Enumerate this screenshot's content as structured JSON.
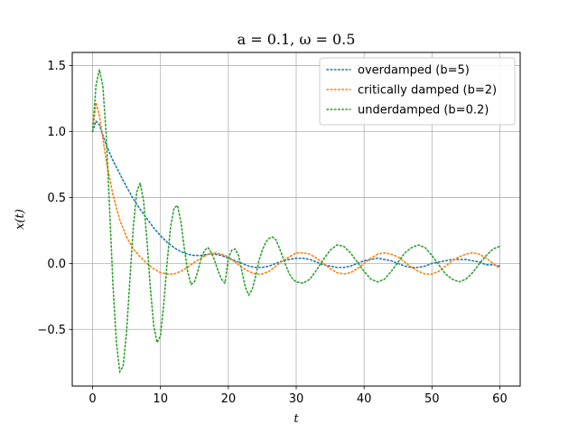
{
  "chart_data": {
    "type": "line",
    "title": "a = 0.1, ω = 0.5",
    "xlabel": "t",
    "ylabel": "x(t)",
    "xlim": [
      -3,
      63
    ],
    "ylim": [
      -0.93,
      1.6
    ],
    "xticks": [
      0,
      10,
      20,
      30,
      40,
      50,
      60
    ],
    "yticks": [
      -0.5,
      0.0,
      0.5,
      1.0,
      1.5
    ],
    "xtick_labels": [
      "0",
      "10",
      "20",
      "30",
      "40",
      "50",
      "60"
    ],
    "ytick_labels": [
      "−0.5",
      "0.0",
      "0.5",
      "1.0",
      "1.5"
    ],
    "grid": true,
    "legend_position": "top-right",
    "line_style": "dotted",
    "series": [
      {
        "name": "overdamped (b=5)",
        "color": "#1f77b4",
        "x": [
          0,
          0.5,
          1,
          2,
          3,
          4,
          5,
          6,
          7,
          8,
          9,
          10,
          11,
          12,
          13,
          14,
          15,
          16,
          17,
          18,
          19,
          20,
          21,
          22,
          23,
          24,
          25,
          26,
          27,
          28,
          29,
          30,
          31,
          32,
          33,
          34,
          35,
          36,
          37,
          38,
          39,
          40,
          41,
          42,
          43,
          44,
          45,
          46,
          47,
          48,
          49,
          50,
          51,
          52,
          53,
          54,
          55,
          56,
          57,
          58,
          59,
          60
        ],
        "y": [
          1.0,
          1.08,
          1.05,
          0.9,
          0.78,
          0.68,
          0.58,
          0.49,
          0.41,
          0.34,
          0.27,
          0.21,
          0.16,
          0.12,
          0.09,
          0.07,
          0.06,
          0.06,
          0.07,
          0.07,
          0.06,
          0.04,
          0.02,
          0.0,
          -0.02,
          -0.03,
          -0.03,
          -0.02,
          0.0,
          0.02,
          0.03,
          0.04,
          0.04,
          0.03,
          0.01,
          -0.01,
          -0.02,
          -0.03,
          -0.03,
          -0.02,
          0.0,
          0.02,
          0.03,
          0.04,
          0.03,
          0.02,
          0.0,
          -0.02,
          -0.03,
          -0.03,
          -0.02,
          0.0,
          0.01,
          0.02,
          0.03,
          0.03,
          0.03,
          0.02,
          0.01,
          -0.01,
          -0.01,
          -0.02
        ]
      },
      {
        "name": "critically damped (b=2)",
        "color": "#ff7f0e",
        "x": [
          0,
          0.5,
          1,
          2,
          3,
          4,
          5,
          6,
          7,
          8,
          9,
          10,
          11,
          12,
          13,
          14,
          15,
          16,
          17,
          18,
          19,
          20,
          21,
          22,
          23,
          24,
          25,
          26,
          27,
          28,
          29,
          30,
          31,
          32,
          33,
          34,
          35,
          36,
          37,
          38,
          39,
          40,
          41,
          42,
          43,
          44,
          45,
          46,
          47,
          48,
          49,
          50,
          51,
          52,
          53,
          54,
          55,
          56,
          57,
          58,
          59,
          60
        ],
        "y": [
          1.0,
          1.22,
          1.12,
          0.78,
          0.52,
          0.33,
          0.2,
          0.11,
          0.05,
          0.0,
          -0.04,
          -0.07,
          -0.08,
          -0.08,
          -0.06,
          -0.03,
          0.01,
          0.04,
          0.07,
          0.08,
          0.07,
          0.05,
          0.01,
          -0.03,
          -0.06,
          -0.08,
          -0.08,
          -0.06,
          -0.02,
          0.02,
          0.05,
          0.08,
          0.08,
          0.07,
          0.04,
          0.0,
          -0.04,
          -0.07,
          -0.08,
          -0.07,
          -0.04,
          0.0,
          0.04,
          0.07,
          0.08,
          0.07,
          0.05,
          0.01,
          -0.03,
          -0.06,
          -0.08,
          -0.08,
          -0.06,
          -0.02,
          0.02,
          0.05,
          0.07,
          0.08,
          0.07,
          0.04,
          0.0,
          -0.04
        ]
      },
      {
        "name": "underdamped (b=0.2)",
        "color": "#2ca02c",
        "x": [
          0,
          0.5,
          1,
          1.5,
          2,
          2.5,
          3,
          3.5,
          4,
          4.5,
          5,
          5.5,
          6,
          6.5,
          7,
          7.5,
          8,
          8.5,
          9,
          9.5,
          10,
          10.5,
          11,
          11.5,
          12,
          12.5,
          13,
          13.5,
          14,
          14.5,
          15,
          15.5,
          16,
          16.5,
          17,
          17.5,
          18,
          18.5,
          19,
          19.5,
          20,
          20.5,
          21,
          21.5,
          22,
          22.5,
          23,
          23.5,
          24,
          24.5,
          25,
          25.5,
          26,
          26.5,
          27,
          27.5,
          28,
          28.5,
          29,
          29.5,
          30,
          31,
          32,
          33,
          34,
          35,
          36,
          37,
          38,
          39,
          40,
          41,
          42,
          43,
          44,
          45,
          46,
          47,
          48,
          49,
          50,
          51,
          52,
          53,
          54,
          55,
          56,
          57,
          58,
          59,
          60
        ],
        "y": [
          1.0,
          1.35,
          1.47,
          1.35,
          0.98,
          0.42,
          -0.16,
          -0.6,
          -0.82,
          -0.78,
          -0.52,
          -0.12,
          0.28,
          0.54,
          0.61,
          0.48,
          0.18,
          -0.18,
          -0.47,
          -0.6,
          -0.55,
          -0.3,
          0.02,
          0.28,
          0.42,
          0.44,
          0.32,
          0.12,
          -0.06,
          -0.16,
          -0.14,
          -0.06,
          0.04,
          0.1,
          0.12,
          0.08,
          0.02,
          -0.06,
          -0.12,
          -0.15,
          0.04,
          0.1,
          0.11,
          0.06,
          -0.06,
          -0.18,
          -0.24,
          -0.2,
          -0.1,
          0.02,
          0.1,
          0.16,
          0.19,
          0.2,
          0.18,
          0.12,
          0.05,
          -0.02,
          -0.08,
          -0.12,
          -0.14,
          -0.15,
          -0.12,
          -0.05,
          0.03,
          0.1,
          0.14,
          0.13,
          0.08,
          0.01,
          -0.06,
          -0.12,
          -0.14,
          -0.12,
          -0.06,
          0.01,
          0.08,
          0.12,
          0.14,
          0.12,
          0.06,
          -0.01,
          -0.08,
          -0.12,
          -0.14,
          -0.12,
          -0.07,
          0.0,
          0.06,
          0.11,
          0.13
        ]
      }
    ]
  }
}
